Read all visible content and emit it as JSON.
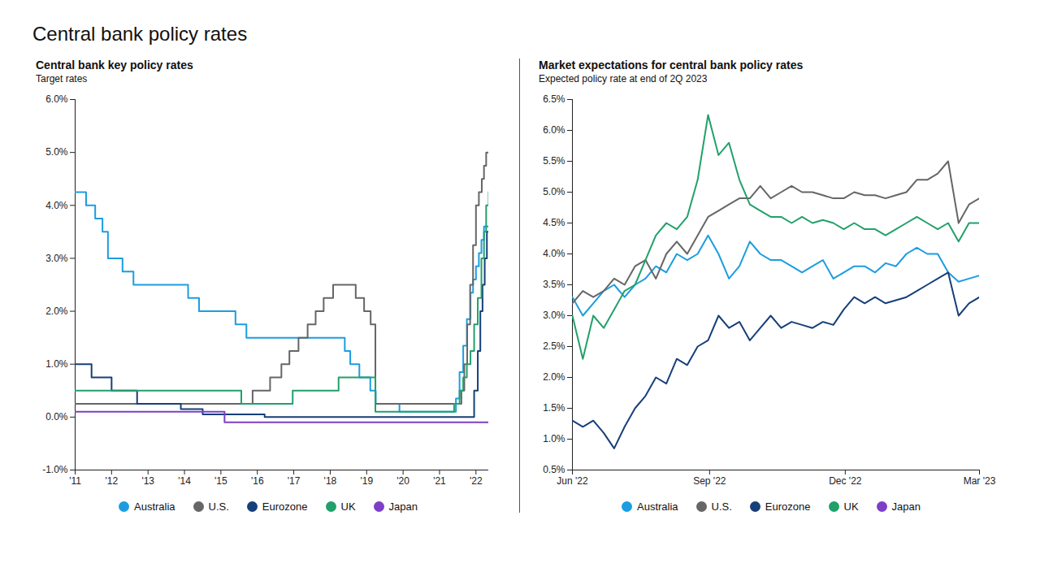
{
  "title": "Central bank policy rates",
  "chart_data": [
    {
      "type": "line",
      "title": "Central bank key policy rates",
      "subtitle": "Target rates",
      "line_style": "step",
      "legend": "bottom",
      "grid": false,
      "xlim": [
        2011,
        2022.35
      ],
      "xticks": [
        {
          "value": 2011,
          "label": "'11"
        },
        {
          "value": 2012,
          "label": "'12"
        },
        {
          "value": 2013,
          "label": "'13"
        },
        {
          "value": 2014,
          "label": "'14"
        },
        {
          "value": 2015,
          "label": "'15"
        },
        {
          "value": 2016,
          "label": "'16"
        },
        {
          "value": 2017,
          "label": "'17"
        },
        {
          "value": 2018,
          "label": "'18"
        },
        {
          "value": 2019,
          "label": "'19"
        },
        {
          "value": 2020,
          "label": "'20"
        },
        {
          "value": 2021,
          "label": "'21"
        },
        {
          "value": 2022,
          "label": "'22"
        }
      ],
      "ylim": [
        -1,
        6
      ],
      "yticks": [
        {
          "value": -1,
          "label": "-1.0%"
        },
        {
          "value": 0,
          "label": "0.0%"
        },
        {
          "value": 1,
          "label": "1.0%"
        },
        {
          "value": 2,
          "label": "2.0%"
        },
        {
          "value": 3,
          "label": "3.0%"
        },
        {
          "value": 4,
          "label": "4.0%"
        },
        {
          "value": 5,
          "label": "5.0%"
        },
        {
          "value": 6,
          "label": "6.0%"
        }
      ],
      "series": [
        {
          "name": "Australia",
          "color": "#1c9de0",
          "x": [
            2011.0,
            2011.3,
            2011.55,
            2011.75,
            2011.9,
            2012.3,
            2012.6,
            2014.1,
            2014.4,
            2015.4,
            2015.7,
            2018.4,
            2018.55,
            2018.8,
            2019.1,
            2019.25,
            2019.9,
            2021.45,
            2021.55,
            2021.65,
            2021.75,
            2021.85,
            2021.92,
            2022.0,
            2022.08,
            2022.15,
            2022.22,
            2022.35
          ],
          "values": [
            4.25,
            4.0,
            3.75,
            3.5,
            3.0,
            2.75,
            2.5,
            2.25,
            2.0,
            1.75,
            1.5,
            1.25,
            1.0,
            0.75,
            0.5,
            0.25,
            0.1,
            0.35,
            0.85,
            1.35,
            1.85,
            2.35,
            2.6,
            2.85,
            3.1,
            3.35,
            3.6,
            3.6
          ]
        },
        {
          "name": "U.S.",
          "color": "#666666",
          "x": [
            2011.0,
            2015.87,
            2016.35,
            2016.66,
            2016.88,
            2017.13,
            2017.38,
            2017.6,
            2017.82,
            2018.08,
            2018.7,
            2018.93,
            2019.11,
            2019.24,
            2021.6,
            2021.68,
            2021.76,
            2021.84,
            2021.92,
            2022.0,
            2022.08,
            2022.16,
            2022.22,
            2022.28,
            2022.35
          ],
          "values": [
            0.25,
            0.5,
            0.75,
            1.0,
            1.25,
            1.5,
            1.75,
            2.0,
            2.25,
            2.5,
            2.25,
            2.0,
            1.75,
            0.25,
            0.5,
            1.0,
            1.75,
            2.5,
            3.25,
            4.0,
            4.25,
            4.5,
            4.75,
            5.0,
            5.0
          ]
        },
        {
          "name": "Eurozone",
          "color": "#173f7a",
          "x": [
            2011.0,
            2011.45,
            2012.0,
            2012.7,
            2013.9,
            2014.5,
            2016.2,
            2021.95,
            2022.05,
            2022.12,
            2022.18,
            2022.24,
            2022.3,
            2022.35
          ],
          "values": [
            1.0,
            0.75,
            0.5,
            0.25,
            0.15,
            0.05,
            0.0,
            0.5,
            1.25,
            2.0,
            2.5,
            3.0,
            3.5,
            3.5
          ]
        },
        {
          "name": "UK",
          "color": "#22a06b",
          "x": [
            2011.0,
            2015.56,
            2016.97,
            2018.23,
            2019.24,
            2021.4,
            2021.55,
            2021.65,
            2021.75,
            2021.85,
            2021.95,
            2022.05,
            2022.15,
            2022.22,
            2022.28,
            2022.35
          ],
          "values": [
            0.5,
            0.25,
            0.5,
            0.75,
            0.1,
            0.25,
            0.5,
            0.75,
            1.0,
            1.25,
            1.75,
            2.25,
            3.0,
            3.5,
            4.0,
            4.25
          ]
        },
        {
          "name": "Japan",
          "color": "#7d3fc7",
          "x": [
            2011.0,
            2015.1,
            2022.35
          ],
          "values": [
            0.1,
            -0.1,
            -0.1
          ]
        }
      ]
    },
    {
      "type": "line",
      "title": "Market expectations for central bank policy rates",
      "subtitle": "Expected policy rate at end of 2Q 2023",
      "legend": "bottom",
      "grid": false,
      "x": [
        "2022-06-01",
        "2022-06-08",
        "2022-06-15",
        "2022-06-22",
        "2022-06-29",
        "2022-07-06",
        "2022-07-13",
        "2022-07-20",
        "2022-07-27",
        "2022-08-03",
        "2022-08-10",
        "2022-08-17",
        "2022-08-24",
        "2022-08-31",
        "2022-09-07",
        "2022-09-14",
        "2022-09-21",
        "2022-09-28",
        "2022-10-05",
        "2022-10-12",
        "2022-10-19",
        "2022-10-26",
        "2022-11-02",
        "2022-11-09",
        "2022-11-16",
        "2022-11-23",
        "2022-11-30",
        "2022-12-07",
        "2022-12-14",
        "2022-12-21",
        "2022-12-28",
        "2023-01-04",
        "2023-01-11",
        "2023-01-18",
        "2023-01-25",
        "2023-02-01",
        "2023-02-08",
        "2023-02-15",
        "2023-02-22",
        "2023-03-01"
      ],
      "xlim": [
        "2022-06-01",
        "2023-03-01"
      ],
      "xticks": [
        {
          "value": "2022-06-01",
          "label": "Jun '22"
        },
        {
          "value": "2022-09-01",
          "label": "Sep '22"
        },
        {
          "value": "2022-12-01",
          "label": "Dec '22"
        },
        {
          "value": "2023-03-01",
          "label": "Mar '23"
        }
      ],
      "ylim": [
        0.5,
        6.5
      ],
      "yticks": [
        {
          "value": 0.5,
          "label": "0.5%"
        },
        {
          "value": 1,
          "label": "1.0%"
        },
        {
          "value": 1.5,
          "label": "1.5%"
        },
        {
          "value": 2,
          "label": "2.0%"
        },
        {
          "value": 2.5,
          "label": "2.5%"
        },
        {
          "value": 3,
          "label": "3.0%"
        },
        {
          "value": 3.5,
          "label": "3.5%"
        },
        {
          "value": 4,
          "label": "4.0%"
        },
        {
          "value": 4.5,
          "label": "4.5%"
        },
        {
          "value": 5,
          "label": "5.0%"
        },
        {
          "value": 5.5,
          "label": "5.5%"
        },
        {
          "value": 6,
          "label": "6.0%"
        },
        {
          "value": 6.5,
          "label": "6.5%"
        }
      ],
      "series": [
        {
          "name": "Australia",
          "color": "#1c9de0",
          "values": [
            3.3,
            3.0,
            3.2,
            3.4,
            3.5,
            3.3,
            3.5,
            3.6,
            3.8,
            3.7,
            4.0,
            3.9,
            4.0,
            4.3,
            4.0,
            3.6,
            3.8,
            4.2,
            4.0,
            3.9,
            3.9,
            3.8,
            3.7,
            3.8,
            3.9,
            3.6,
            3.7,
            3.8,
            3.8,
            3.7,
            3.85,
            3.8,
            4.0,
            4.1,
            4.0,
            4.0,
            3.7,
            3.55,
            3.6,
            3.65
          ]
        },
        {
          "name": "U.S.",
          "color": "#666666",
          "values": [
            3.2,
            3.4,
            3.3,
            3.4,
            3.6,
            3.5,
            3.8,
            3.9,
            3.6,
            4.0,
            4.2,
            4.0,
            4.3,
            4.6,
            4.7,
            4.8,
            4.9,
            4.9,
            5.1,
            4.9,
            5.0,
            5.1,
            5.0,
            5.0,
            4.95,
            4.9,
            4.9,
            5.0,
            4.95,
            4.95,
            4.9,
            4.95,
            5.0,
            5.2,
            5.2,
            5.3,
            5.5,
            4.5,
            4.8,
            4.9
          ]
        },
        {
          "name": "Eurozone",
          "color": "#173f7a",
          "values": [
            1.3,
            1.2,
            1.3,
            1.1,
            0.85,
            1.2,
            1.5,
            1.7,
            2.0,
            1.9,
            2.3,
            2.2,
            2.5,
            2.6,
            3.0,
            2.8,
            2.9,
            2.6,
            2.8,
            3.0,
            2.8,
            2.9,
            2.85,
            2.8,
            2.9,
            2.85,
            3.1,
            3.3,
            3.2,
            3.3,
            3.2,
            3.25,
            3.3,
            3.4,
            3.5,
            3.6,
            3.7,
            3.0,
            3.2,
            3.3
          ]
        },
        {
          "name": "UK",
          "color": "#22a06b",
          "values": [
            3.0,
            2.3,
            3.0,
            2.8,
            3.1,
            3.4,
            3.5,
            3.9,
            4.3,
            4.5,
            4.4,
            4.6,
            5.2,
            6.25,
            5.6,
            5.8,
            5.2,
            4.8,
            4.7,
            4.6,
            4.6,
            4.5,
            4.6,
            4.5,
            4.55,
            4.5,
            4.4,
            4.5,
            4.4,
            4.4,
            4.3,
            4.4,
            4.5,
            4.6,
            4.5,
            4.4,
            4.5,
            4.2,
            4.5,
            4.5
          ]
        },
        {
          "name": "Japan",
          "color": "#7d3fc7",
          "values": [
            null,
            null,
            null,
            null,
            null,
            null,
            null,
            null,
            null,
            null,
            null,
            null,
            null,
            null,
            null,
            null,
            null,
            null,
            null,
            null,
            null,
            null,
            null,
            null,
            null,
            null,
            null,
            null,
            null,
            null,
            null,
            null,
            null,
            null,
            null,
            null,
            null,
            null,
            null,
            null
          ]
        }
      ]
    }
  ]
}
